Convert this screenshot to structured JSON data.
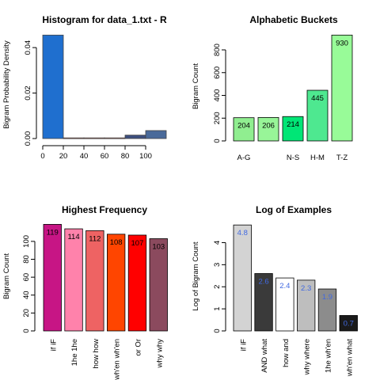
{
  "chart_data": [
    {
      "type": "histogram",
      "title": "Histogram for data_1.txt - R",
      "ylabel": "Bigram Probability Density",
      "xlim": [
        0,
        120
      ],
      "ylim": [
        0,
        0.047
      ],
      "xticks": [
        "0",
        "20",
        "40",
        "60",
        "80",
        "100"
      ],
      "yticks": [
        "0.00",
        "0.02",
        "0.04"
      ],
      "bins": [
        {
          "x0": 0,
          "x1": 20,
          "value": 0.0455,
          "fill": "#1f6fcf"
        },
        {
          "x0": 20,
          "x1": 40,
          "value": 0.0003,
          "fill": "#d86f5a"
        },
        {
          "x0": 40,
          "x1": 60,
          "value": 0.0003,
          "fill": "#d86f5a"
        },
        {
          "x0": 60,
          "x1": 80,
          "value": 0.0003,
          "fill": "#d86f5a"
        },
        {
          "x0": 80,
          "x1": 100,
          "value": 0.0015,
          "fill": "#3d4f7f"
        },
        {
          "x0": 100,
          "x1": 120,
          "value": 0.0035,
          "fill": "#4a6a9a"
        }
      ]
    },
    {
      "type": "bar",
      "title": "Alphabetic Buckets",
      "ylabel": "Bigram Count",
      "categories": [
        "A-G",
        "H-M",
        "N-S",
        "H-M",
        "T-Z"
      ],
      "tick_labels": [
        "A-G",
        "",
        "N-S",
        "H-M",
        "T-Z"
      ],
      "values": [
        204,
        206,
        214,
        445,
        930
      ],
      "colors": [
        "#90ee90",
        "#98f598",
        "#00e676",
        "#4ee890",
        "#98fb98"
      ],
      "label_color": "#000000",
      "ylim": [
        0,
        960
      ],
      "yticks": [
        "0",
        "200",
        "400",
        "600",
        "800"
      ]
    },
    {
      "type": "bar",
      "title": "Highest Frequency",
      "ylabel": "Bigram Count",
      "categories": [
        "if iF",
        "1he 1he",
        "how how",
        "wh'en wh'en",
        "or Or",
        "why why"
      ],
      "values": [
        119,
        114,
        112,
        108,
        107,
        103
      ],
      "colors": [
        "#c71585",
        "#ff82ab",
        "#ee6363",
        "#ff4500",
        "#ff0000",
        "#8b4a5e"
      ],
      "label_color": "#000000",
      "ylim": [
        0,
        122
      ],
      "yticks": [
        "0",
        "20",
        "40",
        "60",
        "80",
        "100"
      ]
    },
    {
      "type": "bar",
      "title": "Log of Examples",
      "ylabel": "Log of Bigram Count",
      "categories": [
        "if iF",
        "AND what",
        "how and",
        "why where",
        "1he wh'en",
        "wh'en what"
      ],
      "values": [
        4.8,
        2.6,
        2.4,
        2.3,
        1.9,
        0.7
      ],
      "colors": [
        "#d3d3d3",
        "#3a3a3a",
        "#ffffff",
        "#bebebe",
        "#8c8c8c",
        "#1a1a1a"
      ],
      "label_color": "#4169e1",
      "ylim": [
        0,
        4.95
      ],
      "yticks": [
        "0",
        "1",
        "2",
        "3",
        "4"
      ]
    }
  ]
}
